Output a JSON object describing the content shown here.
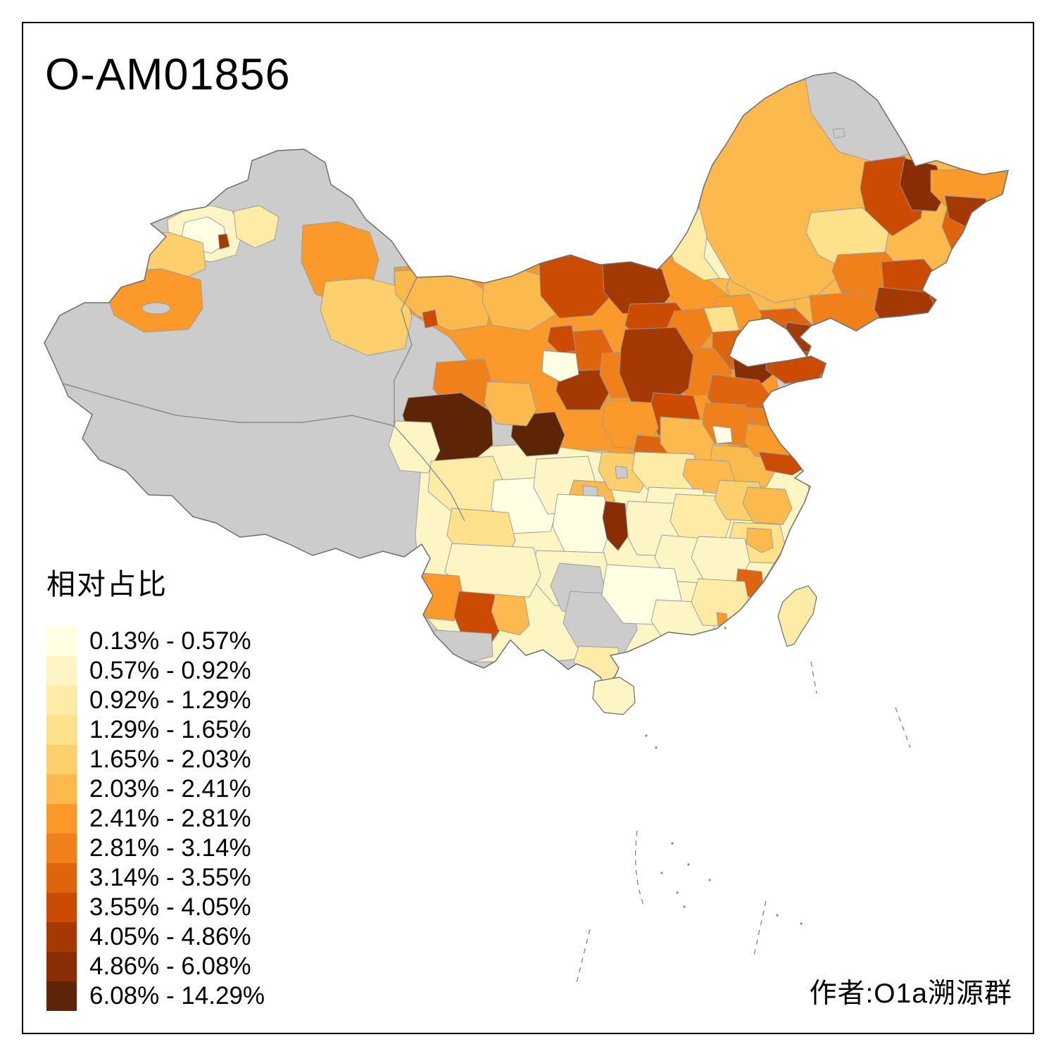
{
  "title": "O-AM01856",
  "legend": {
    "title": "相对占比",
    "items": [
      {
        "label": "0.13% - 0.57%",
        "color": "#FFFFE3"
      },
      {
        "label": "0.57% - 0.92%",
        "color": "#FEF5C4"
      },
      {
        "label": "0.92% - 1.29%",
        "color": "#FEECA6"
      },
      {
        "label": "1.29% - 1.65%",
        "color": "#FDE28B"
      },
      {
        "label": "1.65% - 2.03%",
        "color": "#FDCF6D"
      },
      {
        "label": "2.03% - 2.41%",
        "color": "#FCB94E"
      },
      {
        "label": "2.41% - 2.81%",
        "color": "#FB9A2B"
      },
      {
        "label": "2.81% - 3.14%",
        "color": "#F08019"
      },
      {
        "label": "3.14% - 3.55%",
        "color": "#DE650D"
      },
      {
        "label": "3.55% - 4.05%",
        "color": "#CB4B02"
      },
      {
        "label": "4.05% - 4.86%",
        "color": "#A53903"
      },
      {
        "label": "4.86% - 6.08%",
        "color": "#882D04"
      },
      {
        "label": "6.08% - 14.29%",
        "color": "#5E2406"
      }
    ]
  },
  "map": {
    "no_data_color": "#CCCCCC",
    "boundary_color": "#6E6E6E",
    "prefecture_border_color": "#999999",
    "frame_color": "#000000",
    "background": "#FFFFFF"
  },
  "credit": "作者:O1a溯源群"
}
